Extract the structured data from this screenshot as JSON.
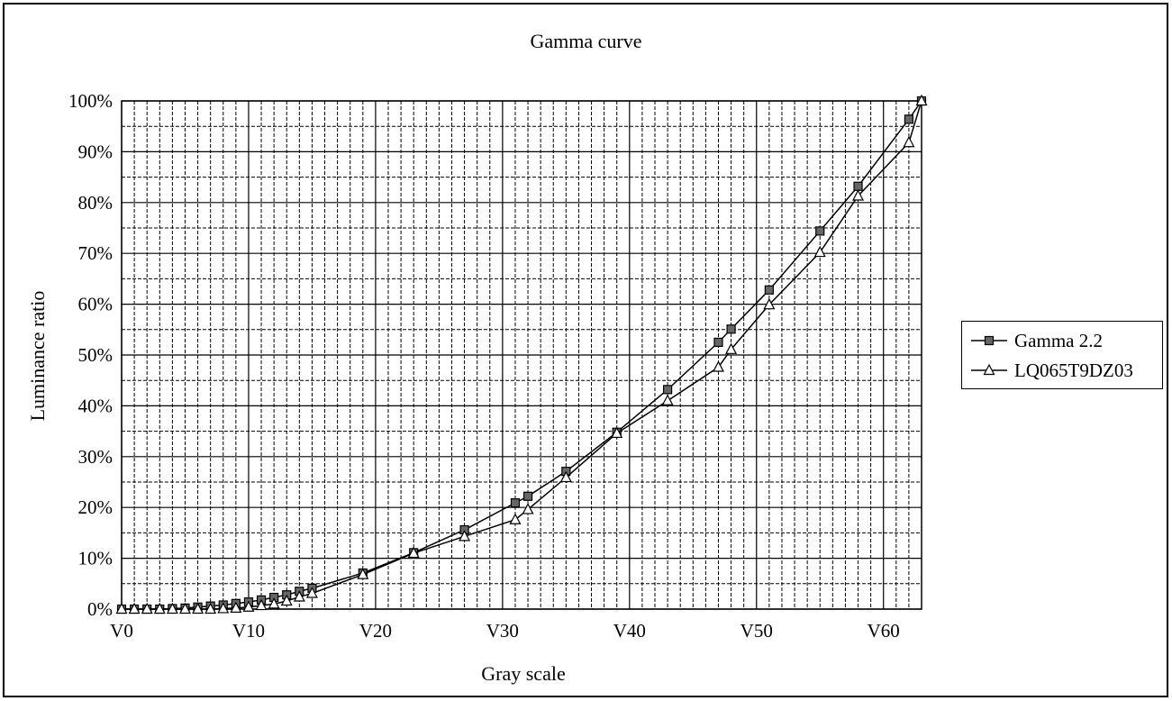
{
  "chart_data": {
    "type": "line",
    "title": "Gamma curve",
    "xlabel": "Gray scale",
    "ylabel": "Luminance ratio",
    "xlim": [
      0,
      63
    ],
    "ylim": [
      0,
      100
    ],
    "x_ticks": [
      0,
      10,
      20,
      30,
      40,
      50,
      60
    ],
    "x_tick_labels": [
      "V0",
      "V10",
      "V20",
      "V30",
      "V40",
      "V50",
      "V60"
    ],
    "y_ticks": [
      0,
      10,
      20,
      30,
      40,
      50,
      60,
      70,
      80,
      90,
      100
    ],
    "y_tick_labels": [
      "0%",
      "10%",
      "20%",
      "30%",
      "40%",
      "50%",
      "60%",
      "70%",
      "80%",
      "90%",
      "100%"
    ],
    "grid": true,
    "legend_position": "right",
    "series": [
      {
        "name": "Gamma 2.2",
        "marker": "square",
        "x": [
          0,
          1,
          2,
          3,
          4,
          5,
          6,
          7,
          8,
          9,
          10,
          11,
          12,
          13,
          14,
          15,
          19,
          23,
          27,
          31,
          32,
          35,
          39,
          43,
          47,
          48,
          51,
          55,
          58,
          62,
          63
        ],
        "y": [
          0,
          0,
          0,
          0,
          0.1,
          0.2,
          0.4,
          0.6,
          0.8,
          1.1,
          1.4,
          1.8,
          2.3,
          2.8,
          3.5,
          4.1,
          7.1,
          11.1,
          15.6,
          20.9,
          22.2,
          27.1,
          34.8,
          43.2,
          52.5,
          55.1,
          62.8,
          74.4,
          83.2,
          96.4,
          100
        ]
      },
      {
        "name": "LQ065T9DZ03",
        "marker": "triangle",
        "x": [
          0,
          1,
          2,
          3,
          4,
          5,
          6,
          7,
          8,
          9,
          10,
          11,
          12,
          13,
          14,
          15,
          19,
          23,
          27,
          31,
          32,
          35,
          39,
          43,
          47,
          48,
          51,
          55,
          58,
          62,
          63
        ],
        "y": [
          0,
          0,
          0,
          0,
          0,
          0,
          0,
          0,
          0.1,
          0.2,
          0.4,
          0.7,
          1.0,
          1.6,
          2.4,
          3.1,
          6.8,
          11.0,
          14.3,
          17.6,
          19.6,
          25.9,
          34.6,
          41.0,
          47.6,
          51.1,
          59.9,
          70.2,
          81.3,
          91.8,
          100
        ]
      }
    ]
  }
}
